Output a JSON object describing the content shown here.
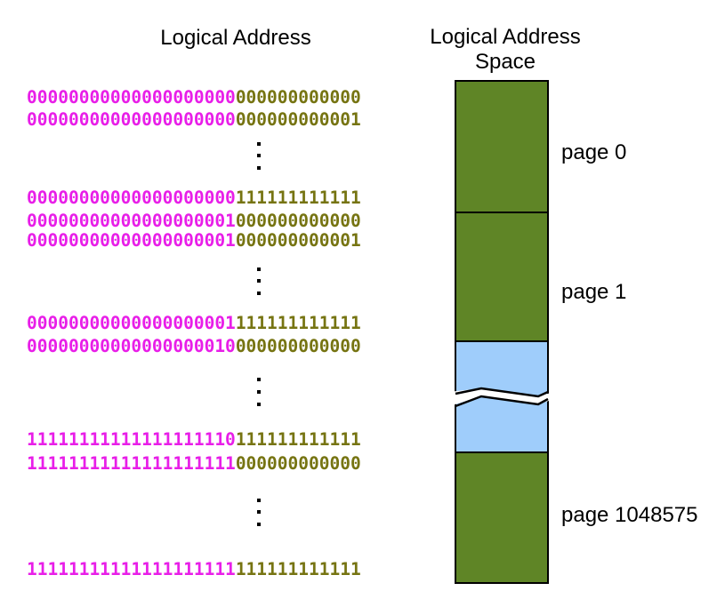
{
  "headings": {
    "logical_address": "Logical Address",
    "address_space_line1": "Logical Address",
    "address_space_line2": "Space"
  },
  "colors": {
    "page_number_bits": "#e81ee8",
    "offset_bits": "#767412",
    "page_fill": "#5f8526",
    "gap_fill": "#9fcdfb",
    "border": "#000000"
  },
  "addresses": [
    {
      "page": "00000000000000000000",
      "offset": "000000000000"
    },
    {
      "page": "00000000000000000000",
      "offset": "000000000001"
    },
    {
      "page": "00000000000000000000",
      "offset": "111111111111"
    },
    {
      "page": "00000000000000000001",
      "offset": "000000000000"
    },
    {
      "page": "00000000000000000001",
      "offset": "000000000001"
    },
    {
      "page": "00000000000000000001",
      "offset": "111111111111"
    },
    {
      "page": "00000000000000000010",
      "offset": "000000000000"
    },
    {
      "page": "11111111111111111110",
      "offset": "111111111111"
    },
    {
      "page": "11111111111111111111",
      "offset": "000000000000"
    },
    {
      "page": "11111111111111111111",
      "offset": "111111111111"
    }
  ],
  "pages": [
    {
      "label": "page 0",
      "kind": "page"
    },
    {
      "label": "page 1",
      "kind": "page"
    },
    {
      "label": "",
      "kind": "gap"
    },
    {
      "label": "page 1048575",
      "kind": "page"
    }
  ]
}
